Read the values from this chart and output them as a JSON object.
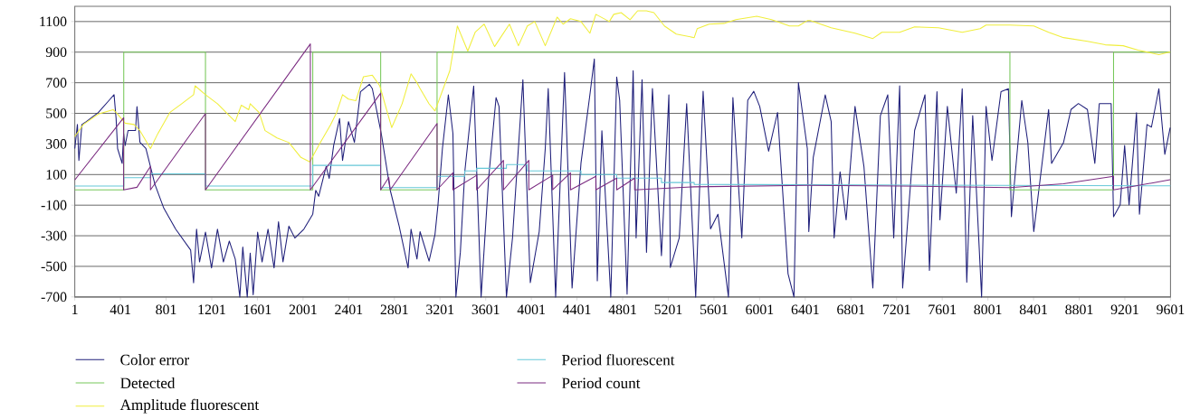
{
  "chart_data": {
    "type": "line",
    "xlim": [
      1,
      9601
    ],
    "ylim": [
      -700,
      1200
    ],
    "xticks": [
      1,
      401,
      801,
      1201,
      1601,
      2001,
      2401,
      2801,
      3201,
      3601,
      4001,
      4401,
      4801,
      5201,
      5601,
      6001,
      6401,
      6801,
      7201,
      7601,
      8001,
      8401,
      8801,
      9201,
      9601
    ],
    "yticks": [
      -700,
      -500,
      -300,
      -100,
      100,
      300,
      500,
      700,
      900,
      1100
    ],
    "grid": "y",
    "legend": "bottom",
    "marker": "none",
    "line_style": "solid",
    "series": [
      {
        "name": "Color error",
        "color": "#1f1f7a",
        "x": [
          1,
          24,
          37,
          63,
          102,
          207,
          311,
          345,
          363,
          376,
          416,
          429,
          442,
          468,
          533,
          546,
          572,
          624,
          703,
          781,
          885,
          1016,
          1042,
          1068,
          1094,
          1146,
          1199,
          1251,
          1303,
          1355,
          1407,
          1447,
          1473,
          1512,
          1538,
          1564,
          1603,
          1642,
          1694,
          1747,
          1786,
          1825,
          1877,
          1929,
          2008,
          2086,
          2112,
          2138,
          2203,
          2230,
          2269,
          2321,
          2347,
          2399,
          2451,
          2504,
          2582,
          2608,
          2686,
          2765,
          2843,
          2921,
          2947,
          2999,
          3026,
          3105,
          3157,
          3183,
          3222,
          3274,
          3314,
          3340,
          3379,
          3418,
          3496,
          3561,
          3627,
          3692,
          3718,
          3783,
          3836,
          3927,
          3992,
          4070,
          4123,
          4149,
          4214,
          4292,
          4358,
          4436,
          4514,
          4553,
          4579,
          4619,
          4697,
          4749,
          4775,
          4840,
          4893,
          4919,
          4971,
          5010,
          5062,
          5141,
          5206,
          5219,
          5297,
          5362,
          5441,
          5506,
          5571,
          5636,
          5728,
          5767,
          5845,
          5897,
          5950,
          6002,
          6080,
          6158,
          6250,
          6302,
          6341,
          6419,
          6432,
          6471,
          6576,
          6628,
          6654,
          6706,
          6759,
          6837,
          6915,
          6993,
          7059,
          7124,
          7176,
          7228,
          7254,
          7359,
          7450,
          7489,
          7555,
          7581,
          7646,
          7724,
          7776,
          7816,
          7868,
          7946,
          7985,
          8037,
          8116,
          8181,
          8207,
          8298,
          8351,
          8403,
          8533,
          8559,
          8664,
          8729,
          8794,
          8873,
          8938,
          8977,
          9081,
          9102,
          9160,
          9199,
          9238,
          9303,
          9329,
          9395,
          9434,
          9499,
          9551,
          9598
        ],
        "values": [
          270,
          427,
          192,
          427,
          446,
          505,
          593,
          622,
          466,
          270,
          173,
          368,
          290,
          388,
          388,
          544,
          310,
          270,
          36,
          -120,
          -257,
          -393,
          -608,
          -257,
          -471,
          -276,
          -510,
          -257,
          -471,
          -335,
          -452,
          -700,
          -374,
          -700,
          -413,
          -686,
          -276,
          -471,
          -257,
          -510,
          -208,
          -471,
          -237,
          -315,
          -257,
          -159,
          -3,
          -42,
          153,
          75,
          290,
          466,
          192,
          446,
          310,
          641,
          690,
          661,
          368,
          -3,
          -237,
          -510,
          -257,
          -452,
          -273,
          -466,
          -291,
          -98,
          270,
          621,
          369,
          -700,
          -408,
          118,
          679,
          -700,
          77,
          603,
          545,
          -700,
          -314,
          720,
          -606,
          -273,
          270,
          662,
          -700,
          767,
          -642,
          175,
          621,
          855,
          -595,
          387,
          -700,
          738,
          586,
          -682,
          779,
          -314,
          720,
          -408,
          662,
          -431,
          621,
          -507,
          -314,
          563,
          -700,
          644,
          -255,
          -159,
          -700,
          603,
          -314,
          586,
          644,
          545,
          253,
          506,
          -548,
          -700,
          701,
          270,
          -273,
          212,
          621,
          446,
          -314,
          118,
          -196,
          545,
          153,
          -642,
          485,
          621,
          -314,
          680,
          -642,
          388,
          621,
          -526,
          642,
          -196,
          545,
          -22,
          661,
          -604,
          485,
          -700,
          545,
          192,
          642,
          661,
          -176,
          584,
          310,
          -273,
          525,
          173,
          310,
          525,
          564,
          525,
          173,
          564,
          564,
          -176,
          -98,
          290,
          -98,
          505,
          -159,
          427,
          410,
          661,
          232,
          407
        ]
      },
      {
        "name": "Detected",
        "color": "#77c85a",
        "x": [
          1,
          430,
          430,
          1146,
          1146,
          2086,
          2086,
          2681,
          2681,
          3175,
          3175,
          8194,
          8194,
          9102,
          9102,
          9601
        ],
        "values": [
          0,
          0,
          900,
          900,
          0,
          0,
          900,
          900,
          0,
          0,
          900,
          900,
          0,
          0,
          900,
          900
        ]
      },
      {
        "name": "Amplitude fluorescent",
        "color": "#f0ee3c",
        "x": [
          1,
          76,
          207,
          337,
          376,
          442,
          520,
          572,
          664,
          729,
          833,
          938,
          1042,
          1055,
          1146,
          1251,
          1407,
          1460,
          1525,
          1538,
          1616,
          1668,
          1773,
          1877,
          1982,
          2060,
          2138,
          2243,
          2295,
          2347,
          2399,
          2464,
          2530,
          2608,
          2673,
          2778,
          2869,
          2947,
          2999,
          3026,
          3105,
          3157,
          3287,
          3353,
          3444,
          3509,
          3588,
          3679,
          3731,
          3809,
          3888,
          3966,
          4031,
          4123,
          4227,
          4279,
          4344,
          4436,
          4514,
          4566,
          4684,
          4723,
          4788,
          4866,
          4932,
          5010,
          5075,
          5167,
          5271,
          5428,
          5454,
          5558,
          5689,
          5793,
          5976,
          6106,
          6263,
          6341,
          6419,
          6445,
          6628,
          6837,
          6993,
          7072,
          7228,
          7359,
          7568,
          7776,
          7933,
          7985,
          8194,
          8403,
          8533,
          8664,
          8873,
          9029,
          9186,
          9316,
          9499,
          9598
        ],
        "values": [
          348,
          427,
          495,
          524,
          495,
          436,
          427,
          387,
          270,
          368,
          505,
          563,
          622,
          680,
          622,
          563,
          446,
          553,
          524,
          563,
          505,
          387,
          339,
          309,
          212,
          183,
          290,
          427,
          505,
          622,
          593,
          583,
          739,
          749,
          680,
          407,
          563,
          758,
          700,
          662,
          562,
          516,
          779,
          1071,
          907,
          1030,
          1083,
          936,
          995,
          1083,
          942,
          1071,
          1100,
          942,
          1129,
          1083,
          1118,
          1100,
          1024,
          1147,
          1100,
          1147,
          1158,
          1112,
          1170,
          1170,
          1158,
          1071,
          1018,
          995,
          1053,
          1083,
          1088,
          1112,
          1135,
          1112,
          1071,
          1071,
          1106,
          1106,
          1059,
          1024,
          989,
          1030,
          1030,
          1065,
          1059,
          1030,
          1053,
          1077,
          1077,
          1071,
          1030,
          995,
          971,
          948,
          942,
          913,
          884,
          901
        ]
      },
      {
        "name": "Period fluorescent",
        "color": "#66c8d8",
        "x": [
          1,
          430,
          430,
          664,
          664,
          1146,
          1146,
          2086,
          2086,
          2681,
          2681,
          3175,
          3175,
          3418,
          3418,
          3522,
          3522,
          3783,
          3783,
          3966,
          3966,
          4436,
          4436,
          4749,
          4749,
          5141,
          5141,
          5428,
          5428,
          9601
        ],
        "values": [
          25,
          25,
          80,
          80,
          105,
          105,
          25,
          25,
          160,
          160,
          15,
          15,
          89,
          89,
          124,
          124,
          141,
          141,
          165,
          165,
          124,
          124,
          100,
          100,
          77,
          77,
          48,
          48,
          36,
          26
        ]
      },
      {
        "name": "Period count",
        "color": "#7a2a80",
        "x": [
          1,
          429,
          429,
          546,
          664,
          664,
          1146,
          1146,
          2065,
          2065,
          2681,
          2681,
          2752,
          2765,
          3175,
          3175,
          3314,
          3314,
          3522,
          3522,
          3757,
          3757,
          3979,
          3979,
          4188,
          4188,
          4344,
          4344,
          4566,
          4566,
          4749,
          4749,
          4906,
          4906,
          5428,
          6419,
          7228,
          8194,
          8664,
          9102,
          9102,
          9598
        ],
        "values": [
          65,
          471,
          0,
          17,
          153,
          0,
          499,
          0,
          954,
          0,
          632,
          0,
          81,
          0,
          434,
          0,
          112,
          0,
          95,
          0,
          193,
          0,
          193,
          0,
          95,
          0,
          112,
          0,
          88,
          0,
          77,
          0,
          77,
          0,
          20,
          30,
          25,
          15,
          40,
          89,
          0,
          66
        ]
      }
    ]
  }
}
